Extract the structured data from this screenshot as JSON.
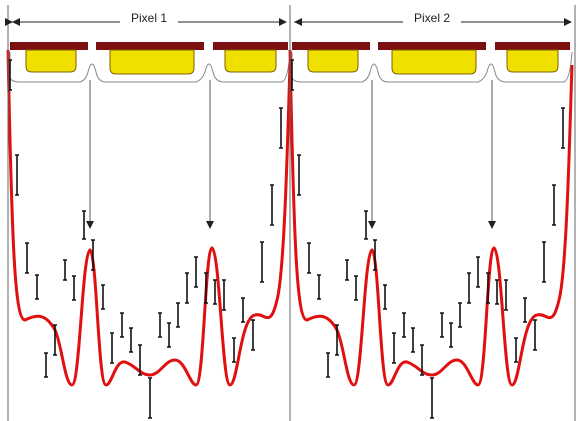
{
  "pixels": [
    {
      "label": "Pixel 1"
    },
    {
      "label": "Pixel 2"
    }
  ]
}
